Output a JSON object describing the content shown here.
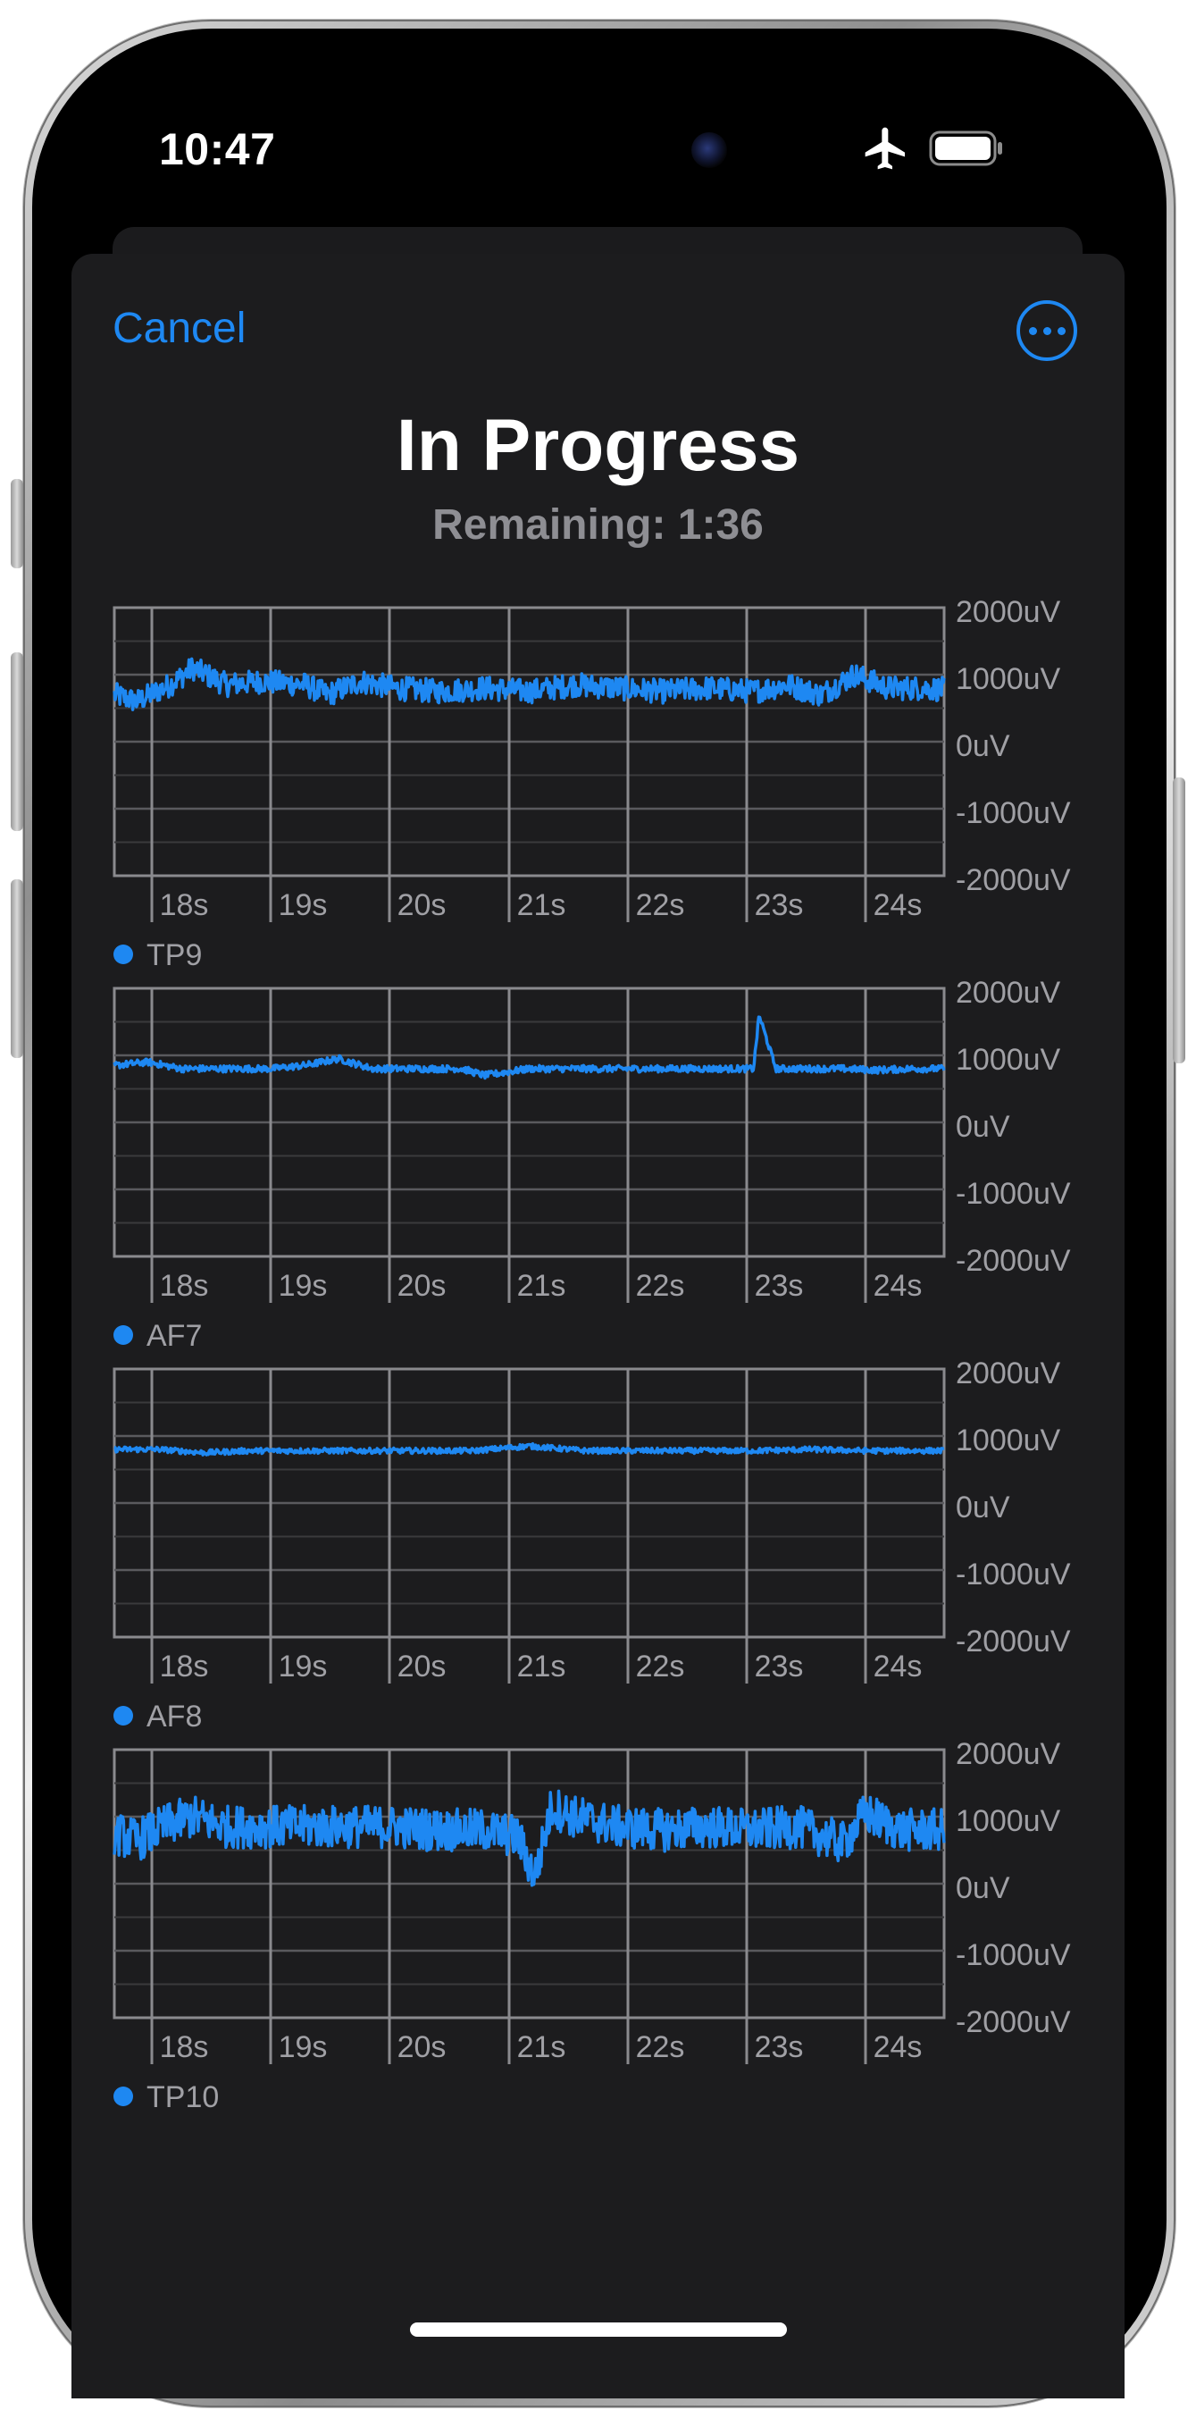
{
  "status_bar": {
    "time": "10:47",
    "airplane_icon": "airplane-icon",
    "battery_icon": "battery-icon"
  },
  "header": {
    "cancel_label": "Cancel",
    "more_icon": "ellipsis-circle-icon",
    "title": "In Progress",
    "subtitle": "Remaining: 1:36"
  },
  "colors": {
    "accent": "#1e88f2",
    "sheet_background": "#1c1c1e",
    "grid": "#8a8a8e",
    "label": "#a0a0a5"
  },
  "chart_data": [
    {
      "type": "line",
      "legend": "TP9",
      "x_ticks": [
        "18s",
        "19s",
        "20s",
        "21s",
        "22s",
        "23s",
        "24s"
      ],
      "y_ticks": [
        "2000uV",
        "1000uV",
        "0uV",
        "-1000uV",
        "-2000uV"
      ],
      "ylim": [
        -2000,
        2000
      ],
      "xlim": [
        17.3,
        24.7
      ],
      "grid": true,
      "series": [
        {
          "x": [
            17.3,
            17.5,
            17.8,
            18.0,
            18.3,
            18.6,
            19.0,
            19.2,
            19.5,
            19.8,
            20.2,
            20.6,
            21.0,
            21.4,
            21.8,
            22.2,
            22.6,
            23.0,
            23.3,
            23.6,
            23.9,
            24.2,
            24.5,
            24.7
          ],
          "y": [
            700,
            600,
            850,
            1100,
            850,
            900,
            850,
            700,
            900,
            800,
            750,
            800,
            750,
            850,
            800,
            750,
            800,
            750,
            850,
            700,
            1000,
            800,
            800,
            780
          ],
          "noise": 180
        }
      ]
    },
    {
      "type": "line",
      "legend": "AF7",
      "x_ticks": [
        "18s",
        "19s",
        "20s",
        "21s",
        "22s",
        "23s",
        "24s"
      ],
      "y_ticks": [
        "2000uV",
        "1000uV",
        "0uV",
        "-1000uV",
        "-2000uV"
      ],
      "ylim": [
        -2000,
        2000
      ],
      "xlim": [
        17.3,
        24.7
      ],
      "grid": true,
      "series": [
        {
          "x": [
            17.3,
            17.6,
            17.9,
            18.3,
            18.7,
            19.0,
            19.3,
            19.6,
            20.0,
            20.4,
            20.6,
            21.0,
            21.4,
            21.8,
            22.2,
            22.6,
            22.9,
            23.0,
            23.05,
            23.2,
            23.5,
            23.8,
            24.1,
            24.4,
            24.7
          ],
          "y": [
            850,
            900,
            800,
            800,
            800,
            850,
            950,
            800,
            800,
            800,
            700,
            800,
            800,
            800,
            800,
            800,
            800,
            800,
            1600,
            800,
            800,
            800,
            780,
            800,
            800
          ],
          "noise": 50
        }
      ]
    },
    {
      "type": "line",
      "legend": "AF8",
      "x_ticks": [
        "18s",
        "19s",
        "20s",
        "21s",
        "22s",
        "23s",
        "24s"
      ],
      "y_ticks": [
        "2000uV",
        "1000uV",
        "0uV",
        "-1000uV",
        "-2000uV"
      ],
      "ylim": [
        -2000,
        2000
      ],
      "xlim": [
        17.3,
        24.7
      ],
      "grid": true,
      "series": [
        {
          "x": [
            17.3,
            17.7,
            18.1,
            18.5,
            19.0,
            19.5,
            20.0,
            20.5,
            21.0,
            21.5,
            22.0,
            22.5,
            23.0,
            23.5,
            24.0,
            24.4,
            24.7
          ],
          "y": [
            800,
            800,
            750,
            780,
            780,
            780,
            780,
            780,
            850,
            780,
            780,
            780,
            780,
            800,
            780,
            780,
            780
          ],
          "noise": 40
        }
      ]
    },
    {
      "type": "line",
      "legend": "TP10",
      "x_ticks": [
        "18s",
        "19s",
        "20s",
        "21s",
        "22s",
        "23s",
        "24s"
      ],
      "y_ticks": [
        "2000uV",
        "1000uV",
        "0uV",
        "-1000uV",
        "-2000uV"
      ],
      "ylim": [
        -2000,
        2000
      ],
      "xlim": [
        17.3,
        24.7
      ],
      "grid": true,
      "series": [
        {
          "x": [
            17.3,
            17.5,
            17.8,
            18.0,
            18.3,
            18.6,
            19.0,
            19.4,
            19.8,
            20.2,
            20.6,
            20.9,
            21.05,
            21.2,
            21.4,
            21.8,
            22.2,
            22.6,
            23.0,
            23.4,
            23.8,
            24.0,
            24.3,
            24.7
          ],
          "y": [
            750,
            650,
            900,
            1000,
            850,
            850,
            850,
            850,
            850,
            800,
            800,
            700,
            100,
            1150,
            1000,
            850,
            800,
            850,
            800,
            850,
            600,
            1050,
            800,
            800
          ],
          "noise": 320
        }
      ]
    }
  ]
}
